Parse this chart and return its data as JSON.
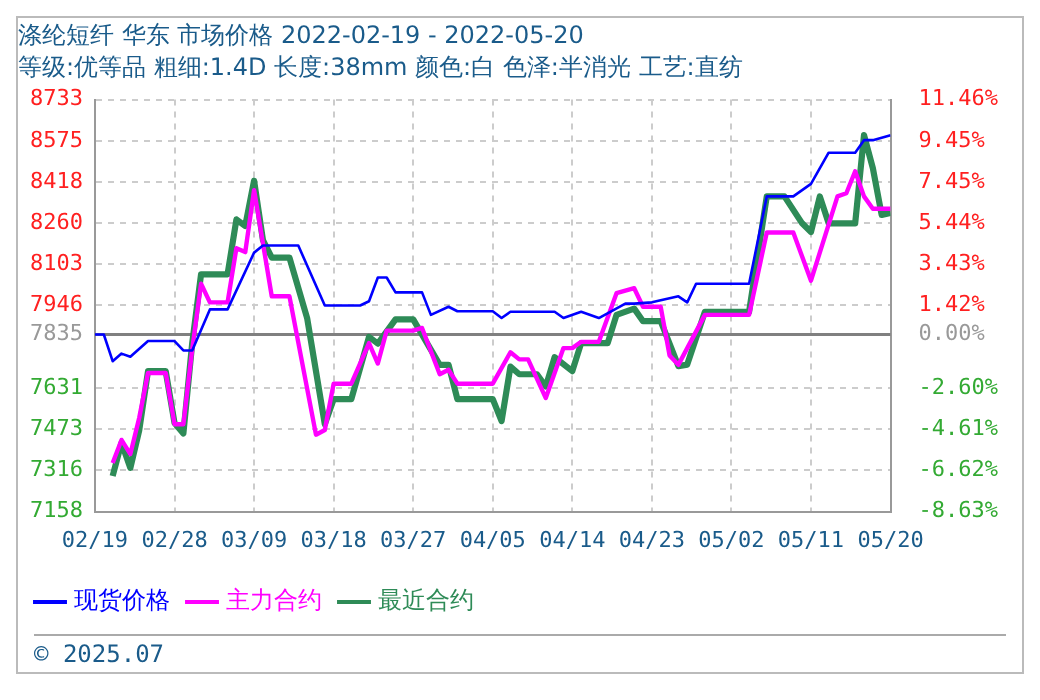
{
  "chart_data": {
    "type": "line",
    "title": "涤纶短纤 华东 市场价格 2022-02-19 - 2022-05-20",
    "subtitle": "等级:优等品 粗细:1.4D 长度:38mm 颜色:白 色泽:半消光 工艺:直纺",
    "annotations": [
      "© 2025.07"
    ],
    "xlim": [
      "2022-02-19",
      "2022-05-20"
    ],
    "xticks": [
      {
        "value": "2022-02-19",
        "label": "02/19"
      },
      {
        "value": "2022-02-28",
        "label": "02/28"
      },
      {
        "value": "2022-03-09",
        "label": "03/09"
      },
      {
        "value": "2022-03-18",
        "label": "03/18"
      },
      {
        "value": "2022-03-27",
        "label": "03/27"
      },
      {
        "value": "2022-04-05",
        "label": "04/05"
      },
      {
        "value": "2022-04-14",
        "label": "04/14"
      },
      {
        "value": "2022-04-23",
        "label": "04/23"
      },
      {
        "value": "2022-05-02",
        "label": "05/02"
      },
      {
        "value": "2022-05-11",
        "label": "05/11"
      },
      {
        "value": "2022-05-20",
        "label": "05/20"
      }
    ],
    "ylim": [
      7158,
      8733
    ],
    "yticks": [
      7158,
      7316,
      7473,
      7631,
      7835,
      7946,
      8103,
      8260,
      8418,
      8575,
      8733
    ],
    "y2lim": [
      -8.63,
      11.46
    ],
    "y2ticks": [
      {
        "value": -8.63,
        "label": "-8.63%"
      },
      {
        "value": -6.62,
        "label": "-6.62%"
      },
      {
        "value": -4.61,
        "label": "-4.61%"
      },
      {
        "value": -2.6,
        "label": "-2.60%"
      },
      {
        "value": 0,
        "label": "0.00%"
      },
      {
        "value": 1.42,
        "label": "1.42%"
      },
      {
        "value": 3.43,
        "label": "3.43%"
      },
      {
        "value": 5.44,
        "label": "5.44%"
      },
      {
        "value": 7.45,
        "label": "7.45%"
      },
      {
        "value": 9.45,
        "label": "9.45%"
      },
      {
        "value": 11.46,
        "label": "11.46%"
      }
    ],
    "ref_lines": [
      {
        "axis": "y",
        "value": 7835,
        "color": "#808080"
      }
    ],
    "grid": true,
    "legend": "bottom",
    "marker": "none",
    "line_style": "solid",
    "series": [
      {
        "name": "现货价格",
        "color": "#0000ff",
        "x": [
          "2022-02-19",
          "2022-02-20",
          "2022-02-21",
          "2022-02-22",
          "2022-02-23",
          "2022-02-25",
          "2022-02-28",
          "2022-03-01",
          "2022-03-02",
          "2022-03-04",
          "2022-03-06",
          "2022-03-09",
          "2022-03-10",
          "2022-03-14",
          "2022-03-17",
          "2022-03-21",
          "2022-03-22",
          "2022-03-23",
          "2022-03-24",
          "2022-03-25",
          "2022-03-28",
          "2022-03-29",
          "2022-03-31",
          "2022-04-01",
          "2022-04-05",
          "2022-04-06",
          "2022-04-07",
          "2022-04-12",
          "2022-04-13",
          "2022-04-15",
          "2022-04-17",
          "2022-04-20",
          "2022-04-21",
          "2022-04-23",
          "2022-04-26",
          "2022-04-27",
          "2022-04-28",
          "2022-05-04",
          "2022-05-06",
          "2022-05-09",
          "2022-05-11",
          "2022-05-13",
          "2022-05-16",
          "2022-05-17",
          "2022-05-18",
          "2022-05-20"
        ],
        "values": [
          7835,
          7835,
          7733,
          7762,
          7750,
          7810,
          7810,
          7774,
          7774,
          7931,
          7931,
          8148,
          8175,
          8175,
          7946,
          7946,
          7962,
          8053,
          8053,
          7996,
          7996,
          7910,
          7941,
          7924,
          7924,
          7898,
          7922,
          7922,
          7898,
          7922,
          7898,
          7953,
          7953,
          7958,
          7981,
          7958,
          8029,
          8029,
          8363,
          8363,
          8411,
          8530,
          8530,
          8578,
          8578,
          8597
        ]
      },
      {
        "name": "主力合约",
        "color": "#ff00ff",
        "x": [
          "2022-02-21",
          "2022-02-22",
          "2022-02-23",
          "2022-02-24",
          "2022-02-25",
          "2022-02-27",
          "2022-02-28",
          "2022-03-01",
          "2022-03-02",
          "2022-03-03",
          "2022-03-04",
          "2022-03-06",
          "2022-03-07",
          "2022-03-08",
          "2022-03-09",
          "2022-03-11",
          "2022-03-13",
          "2022-03-16",
          "2022-03-17",
          "2022-03-18",
          "2022-03-20",
          "2022-03-22",
          "2022-03-23",
          "2022-03-24",
          "2022-03-27",
          "2022-03-28",
          "2022-03-30",
          "2022-03-31",
          "2022-04-01",
          "2022-04-05",
          "2022-04-07",
          "2022-04-08",
          "2022-04-09",
          "2022-04-11",
          "2022-04-13",
          "2022-04-14",
          "2022-04-15",
          "2022-04-17",
          "2022-04-19",
          "2022-04-21",
          "2022-04-22",
          "2022-04-24",
          "2022-04-25",
          "2022-04-26",
          "2022-04-29",
          "2022-05-04",
          "2022-05-06",
          "2022-05-09",
          "2022-05-11",
          "2022-05-14",
          "2022-05-15",
          "2022-05-16",
          "2022-05-17",
          "2022-05-18",
          "2022-05-20"
        ],
        "values": [
          7344,
          7432,
          7378,
          7516,
          7688,
          7688,
          7492,
          7492,
          7779,
          8029,
          7958,
          7958,
          8165,
          8150,
          8387,
          7981,
          7981,
          7452,
          7470,
          7647,
          7647,
          7802,
          7724,
          7850,
          7850,
          7860,
          7683,
          7700,
          7647,
          7647,
          7767,
          7740,
          7740,
          7592,
          7783,
          7783,
          7807,
          7807,
          7993,
          8012,
          7941,
          7941,
          7755,
          7719,
          7910,
          7910,
          8225,
          8225,
          8041,
          8363,
          8375,
          8459,
          8363,
          8316,
          8316
        ]
      },
      {
        "name": "最近合约",
        "color": "#2e8b57",
        "x": [
          "2022-02-21",
          "2022-02-22",
          "2022-02-23",
          "2022-02-24",
          "2022-02-25",
          "2022-02-27",
          "2022-02-28",
          "2022-03-01",
          "2022-03-02",
          "2022-03-03",
          "2022-03-06",
          "2022-03-07",
          "2022-03-08",
          "2022-03-09",
          "2022-03-10",
          "2022-03-11",
          "2022-03-13",
          "2022-03-15",
          "2022-03-17",
          "2022-03-18",
          "2022-03-20",
          "2022-03-22",
          "2022-03-23",
          "2022-03-25",
          "2022-03-27",
          "2022-03-30",
          "2022-03-31",
          "2022-04-01",
          "2022-04-05",
          "2022-04-06",
          "2022-04-07",
          "2022-04-08",
          "2022-04-10",
          "2022-04-11",
          "2022-04-12",
          "2022-04-14",
          "2022-04-15",
          "2022-04-18",
          "2022-04-19",
          "2022-04-21",
          "2022-04-22",
          "2022-04-24",
          "2022-04-26",
          "2022-04-27",
          "2022-04-29",
          "2022-05-04",
          "2022-05-06",
          "2022-05-08",
          "2022-05-10",
          "2022-05-11",
          "2022-05-12",
          "2022-05-13",
          "2022-05-16",
          "2022-05-17",
          "2022-05-18",
          "2022-05-19",
          "2022-05-20"
        ],
        "values": [
          7294,
          7421,
          7325,
          7468,
          7695,
          7695,
          7497,
          7457,
          7802,
          8065,
          8065,
          8275,
          8250,
          8423,
          8196,
          8129,
          8129,
          7898,
          7492,
          7588,
          7588,
          7826,
          7800,
          7893,
          7893,
          7719,
          7719,
          7588,
          7588,
          7504,
          7712,
          7683,
          7683,
          7636,
          7748,
          7695,
          7802,
          7802,
          7910,
          7934,
          7886,
          7886,
          7714,
          7720,
          7922,
          7922,
          8363,
          8363,
          8260,
          8227,
          8363,
          8260,
          8260,
          8597,
          8471,
          8292,
          8300
        ]
      }
    ]
  }
}
